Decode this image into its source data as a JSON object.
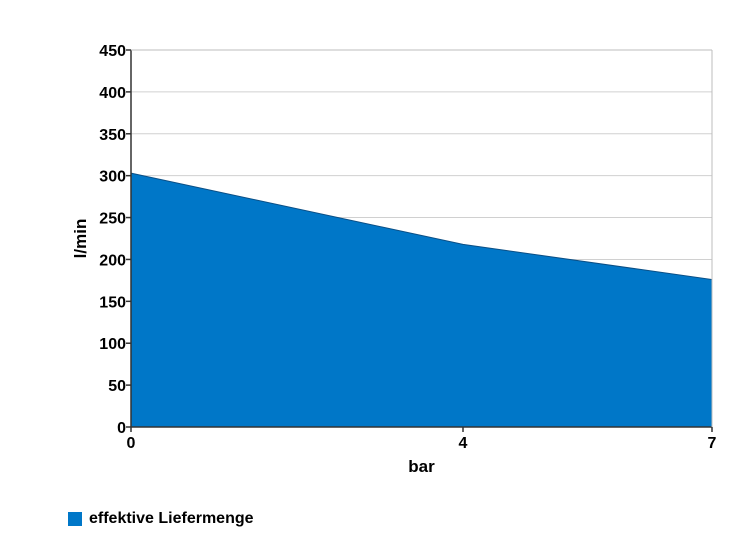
{
  "chart_data": {
    "type": "area",
    "x": [
      0,
      4,
      7
    ],
    "y": [
      303,
      218,
      176
    ],
    "xticks": [
      0,
      4,
      7
    ],
    "yticks": [
      0,
      50,
      100,
      150,
      200,
      250,
      300,
      350,
      400,
      450
    ],
    "xlim": [
      0,
      7
    ],
    "ylim": [
      0,
      450
    ],
    "xlabel": "bar",
    "ylabel": "l/min",
    "grid": true,
    "legend_position": "bottom-left",
    "series": [
      {
        "name": "effektive Liefermenge",
        "color": "#0077c8"
      }
    ]
  }
}
